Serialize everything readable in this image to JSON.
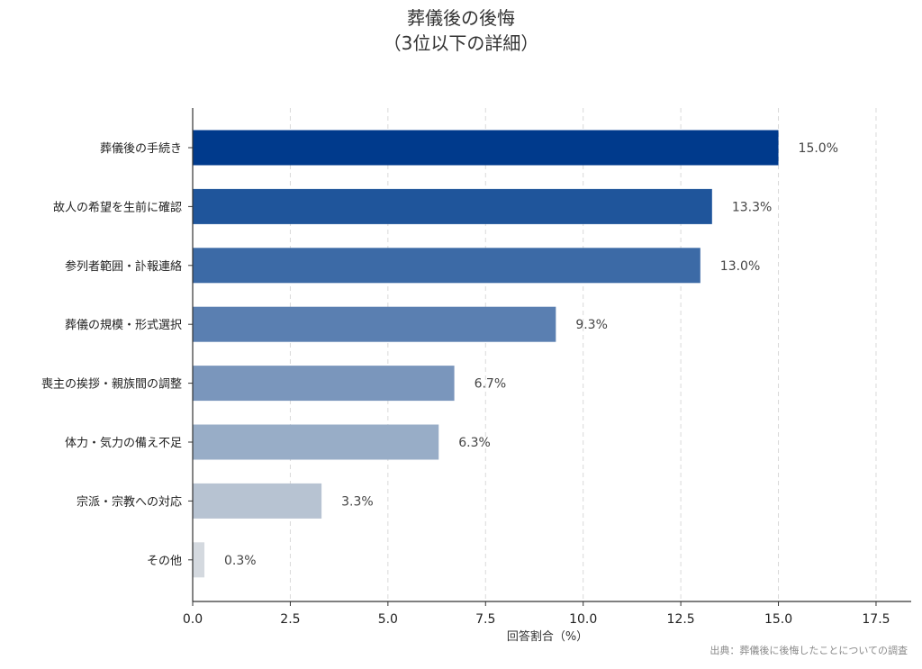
{
  "chart_data": {
    "type": "bar",
    "orientation": "horizontal",
    "title_line1": "葬儀後の後悔",
    "title_line2": "（3位以下の詳細）",
    "xlabel": "回答割合（%）",
    "source": "出典：葬儀後に後悔したことについての調査",
    "xlim": [
      0,
      18.4
    ],
    "xticks": [
      "0.0",
      "2.5",
      "5.0",
      "7.5",
      "10.0",
      "12.5",
      "15.0",
      "17.5"
    ],
    "xtick_values": [
      0,
      2.5,
      5,
      7.5,
      10,
      12.5,
      15,
      17.5
    ],
    "grid": "x-dashed",
    "categories": [
      "葬儀後の手続き",
      "故人の希望を生前に確認",
      "参列者範囲・訃報連絡",
      "葬儀の規模・形式選択",
      "喪主の挨拶・親族間の調整",
      "体力・気力の備え不足",
      "宗派・宗教への対応",
      "その他"
    ],
    "values": [
      15.0,
      13.3,
      13.0,
      9.3,
      6.7,
      6.3,
      3.3,
      0.3
    ],
    "value_labels": [
      "15.0%",
      "13.3%",
      "13.0%",
      "9.3%",
      "6.7%",
      "6.3%",
      "3.3%",
      "0.3%"
    ],
    "colors": [
      "#003a8c",
      "#1f559b",
      "#3c6aa6",
      "#5a7fb1",
      "#7a96bc",
      "#98adc7",
      "#b7c3d2",
      "#d4d9df"
    ]
  }
}
